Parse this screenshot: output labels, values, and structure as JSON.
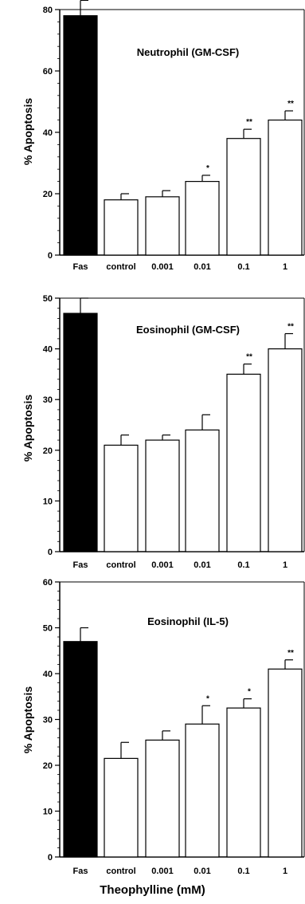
{
  "chart_data": [
    {
      "type": "bar",
      "title": "Neutrophil (GM-CSF)",
      "ylabel": "% Apoptosis",
      "xlabel": "",
      "ylim": [
        0,
        80
      ],
      "yticks": [
        0,
        20,
        40,
        60,
        80
      ],
      "categories": [
        "Fas",
        "control",
        "0.001",
        "0.01",
        "0.1",
        "1"
      ],
      "values": [
        78,
        18,
        19,
        24,
        38,
        44
      ],
      "errors": [
        5,
        2,
        2,
        2,
        3,
        3
      ],
      "significance": [
        "",
        "",
        "",
        "*",
        "**",
        "**"
      ],
      "bar_colors": [
        "#000000",
        "#ffffff",
        "#ffffff",
        "#ffffff",
        "#ffffff",
        "#ffffff"
      ]
    },
    {
      "type": "bar",
      "title": "Eosinophil (GM-CSF)",
      "ylabel": "% Apoptosis",
      "xlabel": "",
      "ylim": [
        0,
        50
      ],
      "yticks": [
        0,
        10,
        20,
        30,
        40,
        50
      ],
      "categories": [
        "Fas",
        "control",
        "0.001",
        "0.01",
        "0.1",
        "1"
      ],
      "values": [
        47,
        21,
        22,
        24,
        35,
        40
      ],
      "errors": [
        3,
        2,
        1,
        3,
        2,
        3
      ],
      "significance": [
        "",
        "",
        "",
        "",
        "**",
        "**"
      ],
      "bar_colors": [
        "#000000",
        "#ffffff",
        "#ffffff",
        "#ffffff",
        "#ffffff",
        "#ffffff"
      ]
    },
    {
      "type": "bar",
      "title": "Eosinophil (IL-5)",
      "ylabel": "% Apoptosis",
      "xlabel": "Theophylline (mM)",
      "ylim": [
        0,
        60
      ],
      "yticks": [
        0,
        10,
        20,
        30,
        40,
        50,
        60
      ],
      "categories": [
        "Fas",
        "control",
        "0.001",
        "0.01",
        "0.1",
        "1"
      ],
      "values": [
        47,
        21.5,
        25.5,
        29,
        32.5,
        41
      ],
      "errors": [
        3,
        3.5,
        2,
        4,
        2,
        2
      ],
      "significance": [
        "",
        "",
        "",
        "*",
        "*",
        "**"
      ],
      "bar_colors": [
        "#000000",
        "#ffffff",
        "#ffffff",
        "#ffffff",
        "#ffffff",
        "#ffffff"
      ]
    }
  ]
}
